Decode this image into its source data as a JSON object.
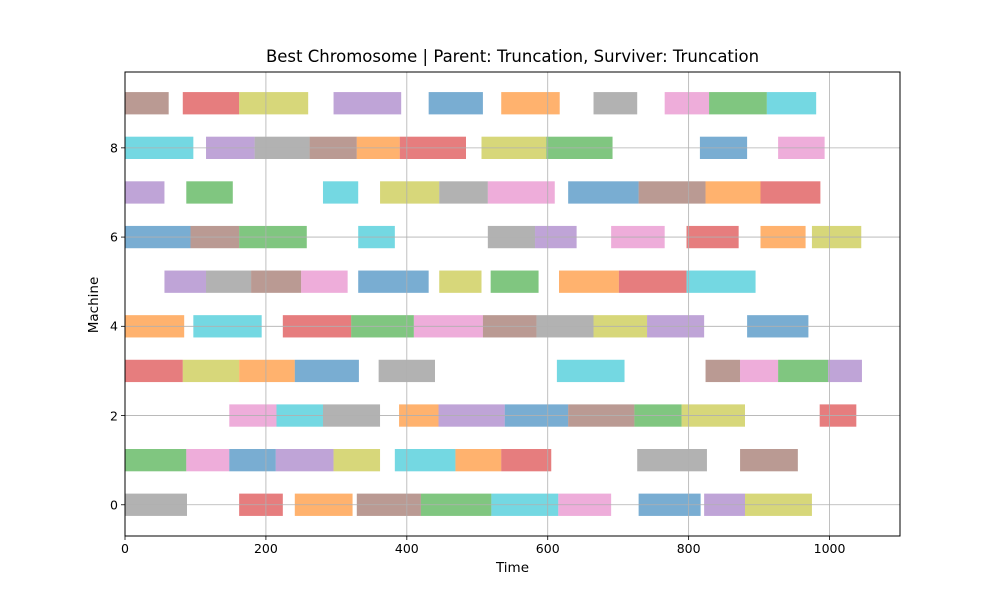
{
  "chart_data": {
    "type": "gantt",
    "title": "Best Chromosome | Parent: Truncation, Surviver: Truncation",
    "xlabel": "Time",
    "ylabel": "Machine",
    "xlim": [
      0,
      1100
    ],
    "ylim": [
      -0.7,
      9.7
    ],
    "xticks": [
      0,
      200,
      400,
      600,
      800,
      1000
    ],
    "yticks": [
      0,
      2,
      4,
      6,
      8
    ],
    "grid": true,
    "colors": {
      "blue": "#1f77b4",
      "orange": "#ff7f0e",
      "green": "#2ca02c",
      "red": "#d62728",
      "purple": "#9467bd",
      "brown": "#8c564b",
      "pink": "#e377c2",
      "gray": "#7f7f7f",
      "olive": "#bcbd22",
      "cyan": "#17becf"
    },
    "tasks": [
      {
        "machine": 0,
        "start": 0,
        "end": 88,
        "color": "gray"
      },
      {
        "machine": 0,
        "start": 162,
        "end": 224,
        "color": "red"
      },
      {
        "machine": 0,
        "start": 241,
        "end": 323,
        "color": "orange"
      },
      {
        "machine": 0,
        "start": 329,
        "end": 420,
        "color": "brown"
      },
      {
        "machine": 0,
        "start": 420,
        "end": 520,
        "color": "green"
      },
      {
        "machine": 0,
        "start": 520,
        "end": 615,
        "color": "cyan"
      },
      {
        "machine": 0,
        "start": 615,
        "end": 690,
        "color": "pink"
      },
      {
        "machine": 0,
        "start": 729,
        "end": 817,
        "color": "blue"
      },
      {
        "machine": 0,
        "start": 822,
        "end": 880,
        "color": "purple"
      },
      {
        "machine": 0,
        "start": 880,
        "end": 975,
        "color": "olive"
      },
      {
        "machine": 1,
        "start": 0,
        "end": 87,
        "color": "green"
      },
      {
        "machine": 1,
        "start": 87,
        "end": 148,
        "color": "pink"
      },
      {
        "machine": 1,
        "start": 148,
        "end": 214,
        "color": "blue"
      },
      {
        "machine": 1,
        "start": 214,
        "end": 296,
        "color": "purple"
      },
      {
        "machine": 1,
        "start": 296,
        "end": 362,
        "color": "olive"
      },
      {
        "machine": 1,
        "start": 383,
        "end": 469,
        "color": "cyan"
      },
      {
        "machine": 1,
        "start": 469,
        "end": 534,
        "color": "orange"
      },
      {
        "machine": 1,
        "start": 534,
        "end": 605,
        "color": "red"
      },
      {
        "machine": 1,
        "start": 727,
        "end": 826,
        "color": "gray"
      },
      {
        "machine": 1,
        "start": 873,
        "end": 955,
        "color": "brown"
      },
      {
        "machine": 2,
        "start": 148,
        "end": 215,
        "color": "pink"
      },
      {
        "machine": 2,
        "start": 215,
        "end": 281,
        "color": "cyan"
      },
      {
        "machine": 2,
        "start": 281,
        "end": 362,
        "color": "gray"
      },
      {
        "machine": 2,
        "start": 389,
        "end": 445,
        "color": "orange"
      },
      {
        "machine": 2,
        "start": 445,
        "end": 539,
        "color": "purple"
      },
      {
        "machine": 2,
        "start": 539,
        "end": 629,
        "color": "blue"
      },
      {
        "machine": 2,
        "start": 629,
        "end": 723,
        "color": "brown"
      },
      {
        "machine": 2,
        "start": 723,
        "end": 790,
        "color": "green"
      },
      {
        "machine": 2,
        "start": 790,
        "end": 880,
        "color": "olive"
      },
      {
        "machine": 2,
        "start": 986,
        "end": 1038,
        "color": "red"
      },
      {
        "machine": 3,
        "start": 0,
        "end": 82,
        "color": "red"
      },
      {
        "machine": 3,
        "start": 82,
        "end": 162,
        "color": "olive"
      },
      {
        "machine": 3,
        "start": 162,
        "end": 241,
        "color": "orange"
      },
      {
        "machine": 3,
        "start": 241,
        "end": 332,
        "color": "blue"
      },
      {
        "machine": 3,
        "start": 360,
        "end": 440,
        "color": "gray"
      },
      {
        "machine": 3,
        "start": 613,
        "end": 709,
        "color": "cyan"
      },
      {
        "machine": 3,
        "start": 824,
        "end": 873,
        "color": "brown"
      },
      {
        "machine": 3,
        "start": 873,
        "end": 927,
        "color": "pink"
      },
      {
        "machine": 3,
        "start": 927,
        "end": 998,
        "color": "green"
      },
      {
        "machine": 3,
        "start": 998,
        "end": 1046,
        "color": "purple"
      },
      {
        "machine": 4,
        "start": 0,
        "end": 84,
        "color": "orange"
      },
      {
        "machine": 4,
        "start": 97,
        "end": 194,
        "color": "cyan"
      },
      {
        "machine": 4,
        "start": 224,
        "end": 321,
        "color": "red"
      },
      {
        "machine": 4,
        "start": 321,
        "end": 410,
        "color": "green"
      },
      {
        "machine": 4,
        "start": 410,
        "end": 508,
        "color": "pink"
      },
      {
        "machine": 4,
        "start": 508,
        "end": 584,
        "color": "brown"
      },
      {
        "machine": 4,
        "start": 584,
        "end": 665,
        "color": "gray"
      },
      {
        "machine": 4,
        "start": 665,
        "end": 741,
        "color": "olive"
      },
      {
        "machine": 4,
        "start": 741,
        "end": 822,
        "color": "purple"
      },
      {
        "machine": 4,
        "start": 883,
        "end": 970,
        "color": "blue"
      },
      {
        "machine": 5,
        "start": 56,
        "end": 115,
        "color": "purple"
      },
      {
        "machine": 5,
        "start": 115,
        "end": 179,
        "color": "gray"
      },
      {
        "machine": 5,
        "start": 179,
        "end": 250,
        "color": "brown"
      },
      {
        "machine": 5,
        "start": 250,
        "end": 316,
        "color": "pink"
      },
      {
        "machine": 5,
        "start": 331,
        "end": 431,
        "color": "blue"
      },
      {
        "machine": 5,
        "start": 446,
        "end": 506,
        "color": "olive"
      },
      {
        "machine": 5,
        "start": 519,
        "end": 587,
        "color": "green"
      },
      {
        "machine": 5,
        "start": 616,
        "end": 701,
        "color": "orange"
      },
      {
        "machine": 5,
        "start": 701,
        "end": 797,
        "color": "red"
      },
      {
        "machine": 5,
        "start": 797,
        "end": 895,
        "color": "cyan"
      },
      {
        "machine": 6,
        "start": 0,
        "end": 93,
        "color": "blue"
      },
      {
        "machine": 6,
        "start": 93,
        "end": 162,
        "color": "brown"
      },
      {
        "machine": 6,
        "start": 162,
        "end": 258,
        "color": "green"
      },
      {
        "machine": 6,
        "start": 331,
        "end": 383,
        "color": "cyan"
      },
      {
        "machine": 6,
        "start": 515,
        "end": 582,
        "color": "gray"
      },
      {
        "machine": 6,
        "start": 582,
        "end": 641,
        "color": "purple"
      },
      {
        "machine": 6,
        "start": 690,
        "end": 766,
        "color": "pink"
      },
      {
        "machine": 6,
        "start": 797,
        "end": 871,
        "color": "red"
      },
      {
        "machine": 6,
        "start": 902,
        "end": 966,
        "color": "orange"
      },
      {
        "machine": 6,
        "start": 975,
        "end": 1045,
        "color": "olive"
      },
      {
        "machine": 7,
        "start": 0,
        "end": 56,
        "color": "purple"
      },
      {
        "machine": 7,
        "start": 87,
        "end": 153,
        "color": "green"
      },
      {
        "machine": 7,
        "start": 281,
        "end": 331,
        "color": "cyan"
      },
      {
        "machine": 7,
        "start": 362,
        "end": 446,
        "color": "olive"
      },
      {
        "machine": 7,
        "start": 446,
        "end": 515,
        "color": "gray"
      },
      {
        "machine": 7,
        "start": 515,
        "end": 610,
        "color": "pink"
      },
      {
        "machine": 7,
        "start": 629,
        "end": 729,
        "color": "blue"
      },
      {
        "machine": 7,
        "start": 729,
        "end": 824,
        "color": "brown"
      },
      {
        "machine": 7,
        "start": 824,
        "end": 902,
        "color": "orange"
      },
      {
        "machine": 7,
        "start": 902,
        "end": 987,
        "color": "red"
      },
      {
        "machine": 8,
        "start": 0,
        "end": 97,
        "color": "cyan"
      },
      {
        "machine": 8,
        "start": 115,
        "end": 184,
        "color": "purple"
      },
      {
        "machine": 8,
        "start": 184,
        "end": 262,
        "color": "gray"
      },
      {
        "machine": 8,
        "start": 262,
        "end": 329,
        "color": "brown"
      },
      {
        "machine": 8,
        "start": 329,
        "end": 390,
        "color": "orange"
      },
      {
        "machine": 8,
        "start": 390,
        "end": 484,
        "color": "red"
      },
      {
        "machine": 8,
        "start": 506,
        "end": 598,
        "color": "olive"
      },
      {
        "machine": 8,
        "start": 598,
        "end": 692,
        "color": "green"
      },
      {
        "machine": 8,
        "start": 816,
        "end": 883,
        "color": "blue"
      },
      {
        "machine": 8,
        "start": 927,
        "end": 993,
        "color": "pink"
      },
      {
        "machine": 9,
        "start": 0,
        "end": 62,
        "color": "brown"
      },
      {
        "machine": 9,
        "start": 82,
        "end": 162,
        "color": "red"
      },
      {
        "machine": 9,
        "start": 162,
        "end": 260,
        "color": "olive"
      },
      {
        "machine": 9,
        "start": 296,
        "end": 392,
        "color": "purple"
      },
      {
        "machine": 9,
        "start": 431,
        "end": 508,
        "color": "blue"
      },
      {
        "machine": 9,
        "start": 534,
        "end": 617,
        "color": "orange"
      },
      {
        "machine": 9,
        "start": 665,
        "end": 727,
        "color": "gray"
      },
      {
        "machine": 9,
        "start": 766,
        "end": 829,
        "color": "pink"
      },
      {
        "machine": 9,
        "start": 829,
        "end": 911,
        "color": "green"
      },
      {
        "machine": 9,
        "start": 911,
        "end": 981,
        "color": "cyan"
      }
    ]
  }
}
